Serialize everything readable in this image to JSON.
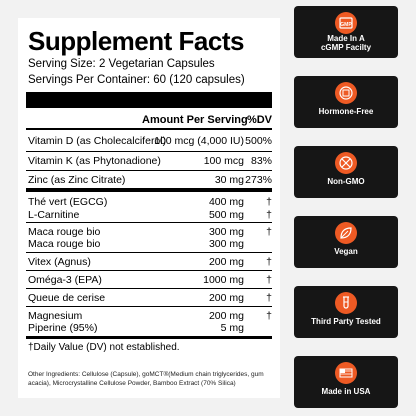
{
  "facts": {
    "title": "Supplement Facts",
    "serving_size": "Serving Size: 2 Vegetarian Capsules",
    "servings_per_container": "Servings Per Container: 60 (120 capsules)",
    "header_amount": "Amount Per Serving",
    "header_dv": "%DV",
    "rows": [
      {
        "name": "Vitamin D (as Cholecalciferol)",
        "amount": "100 mcg (4,000 IU)",
        "dv": "500%"
      },
      {
        "name": "Vitamin K (as Phytonadione)",
        "amount": "100 mcg",
        "dv": "83%"
      },
      {
        "name": "Zinc (as Zinc Citrate)",
        "amount": "30 mg",
        "dv": "273%"
      },
      {
        "name": "Thé vert (EGCG)",
        "amount": "400 mg",
        "dv": "†"
      },
      {
        "name": "L-Carnitine",
        "amount": "500 mg",
        "dv": "†"
      },
      {
        "name": "Maca rouge bio",
        "amount": "300 mg",
        "dv": "†"
      },
      {
        "name": "Maca rouge bio",
        "amount": "300 mg",
        "dv": ""
      },
      {
        "name": "Vitex (Agnus)",
        "amount": "200 mg",
        "dv": "†"
      },
      {
        "name": "Oméga-3 (EPA)",
        "amount": "1000 mg",
        "dv": "†"
      },
      {
        "name": "Queue de cerise",
        "amount": "200 mg",
        "dv": "†"
      },
      {
        "name": "Magnesium",
        "amount": "200 mg",
        "dv": "†"
      },
      {
        "name": "Piperine (95%)",
        "amount": "5 mg",
        "dv": ""
      }
    ],
    "footnote": "†Daily Value (DV) not established.",
    "other_ingredients": "Other Ingredients: Cellulose (Capsule), goMCT®(Medium chain triglycerides, gum acacia), Microcrystalline Cellulose Powder, Bamboo Extract (70% Silica)"
  },
  "badges": [
    {
      "icon": "gmp-icon",
      "label_line1": "Made In A",
      "label_line2": "cGMP Facilty"
    },
    {
      "icon": "hormone-free-icon",
      "label_line1": "Hormone-Free",
      "label_line2": ""
    },
    {
      "icon": "non-gmo-icon",
      "label_line1": "Non-GMO",
      "label_line2": ""
    },
    {
      "icon": "vegan-leaf-icon",
      "label_line1": "Vegan",
      "label_line2": ""
    },
    {
      "icon": "test-tube-icon",
      "label_line1": "Third Party Tested",
      "label_line2": ""
    },
    {
      "icon": "usa-flag-icon",
      "label_line1": "Made in USA",
      "label_line2": ""
    }
  ],
  "gmp_icon_text": "GMP",
  "colors": {
    "accent": "#ee5a24",
    "badge_bg": "#161616",
    "panel_bg": "#ffffff"
  }
}
